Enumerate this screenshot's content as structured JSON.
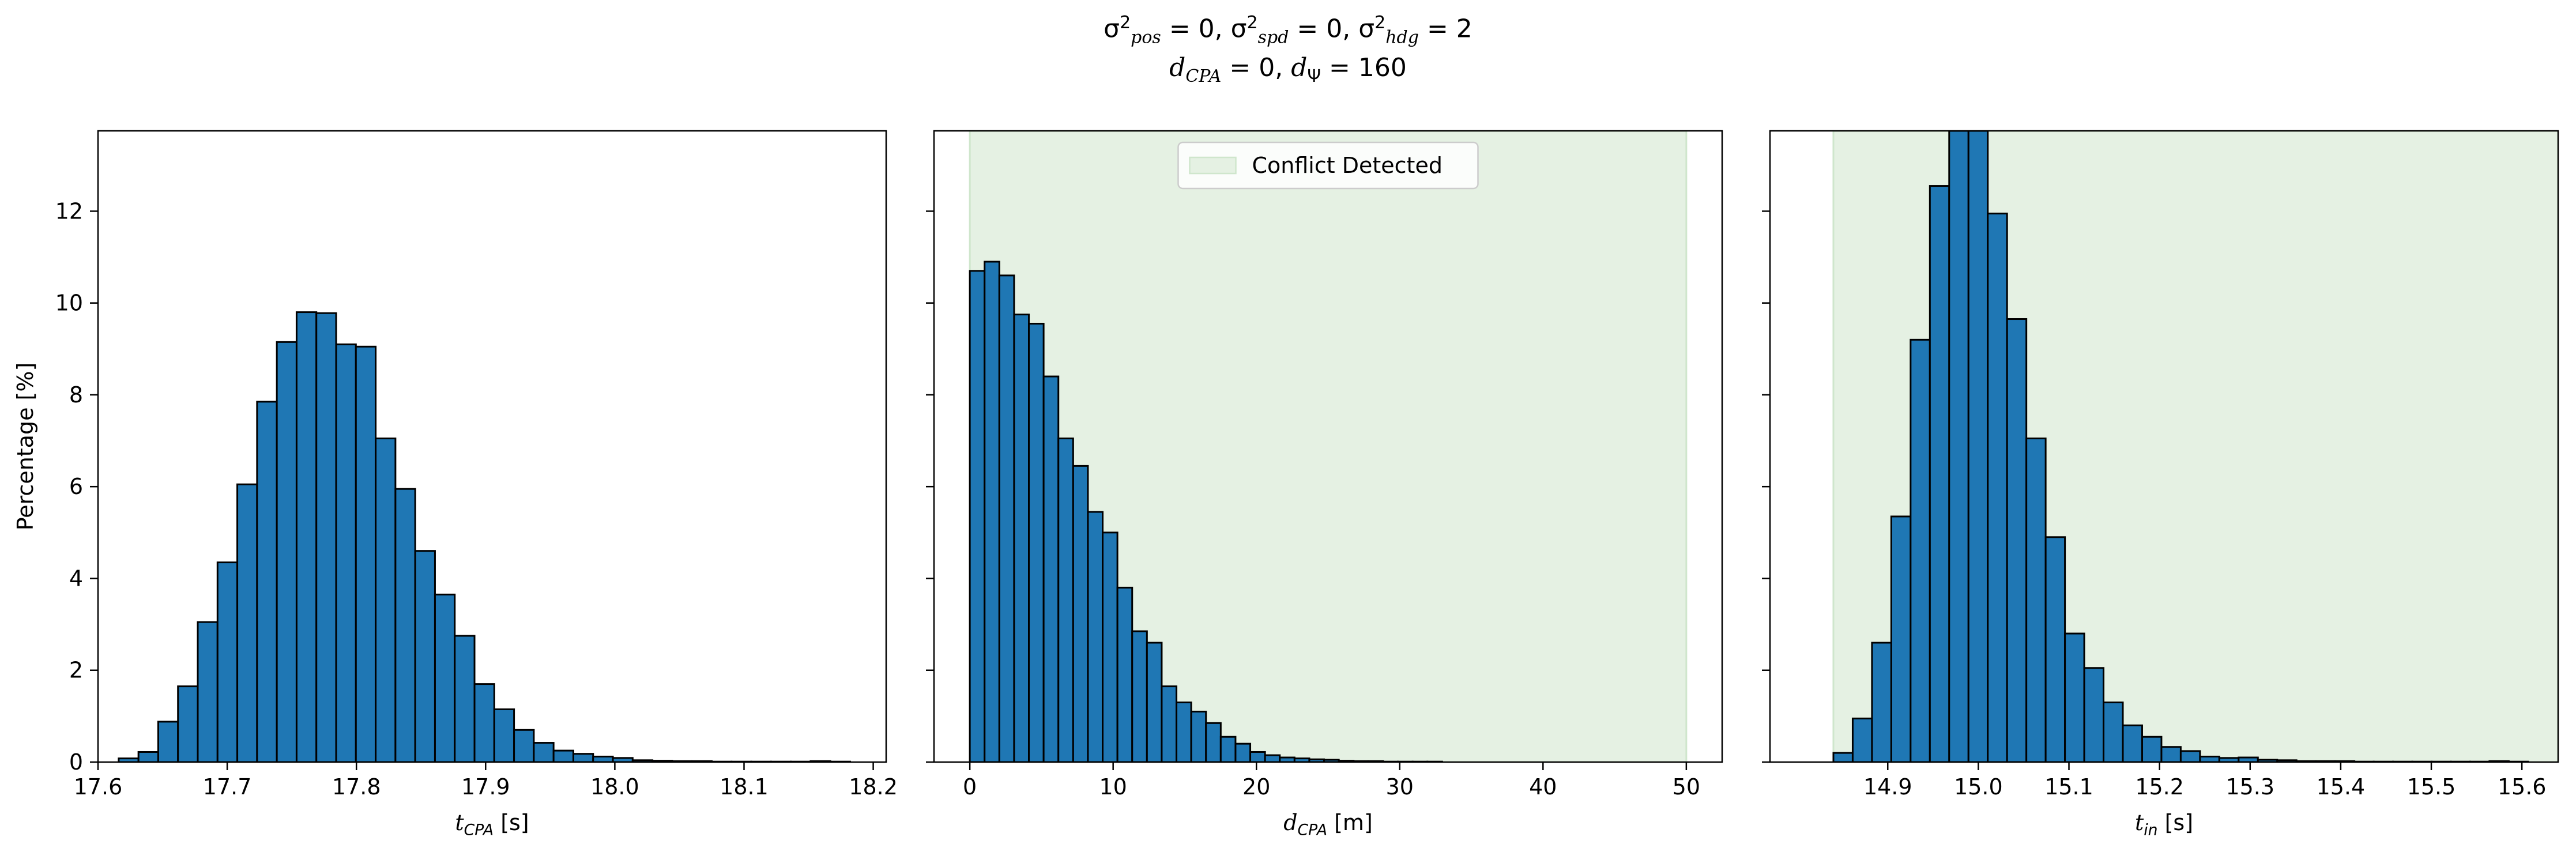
{
  "title": {
    "line1": "σ²pos = 0, σ²spd = 0, σ²hdg = 2",
    "line2": "dCPA = 0, dΨ = 160"
  },
  "colors": {
    "bar_fill": "#1f77b4",
    "bar_edge": "#000000",
    "shade_fill": "#e5f1e3",
    "shade_edge": "#cfe6cc"
  },
  "chart_data": [
    {
      "type": "bar",
      "xlabel": "t_CPA [s]",
      "ylabel": "Percentage [%]",
      "xlim": [
        17.6,
        18.21
      ],
      "ylim": [
        0,
        13.75
      ],
      "xticks": [
        17.6,
        17.7,
        17.8,
        17.9,
        18.0,
        18.1,
        18.2
      ],
      "xtick_labels": [
        "17.6",
        "17.7",
        "17.8",
        "17.9",
        "18.0",
        "18.1",
        "18.2"
      ],
      "yticks": [
        0,
        2,
        4,
        6,
        8,
        10,
        12
      ],
      "ytick_labels": [
        "0",
        "2",
        "4",
        "6",
        "8",
        "10",
        "12"
      ],
      "bin_edges": [
        17.616,
        17.6313,
        17.6466,
        17.6619,
        17.6772,
        17.6925,
        17.7078,
        17.7231,
        17.7384,
        17.7537,
        17.769,
        17.7843,
        17.7996,
        17.8149,
        17.8302,
        17.8455,
        17.8608,
        17.8761,
        17.8914,
        17.9067,
        17.922,
        17.9373,
        17.9526,
        17.9679,
        17.9832,
        17.9985,
        18.0138,
        18.0291,
        18.0444,
        18.0597,
        18.075,
        18.0903,
        18.1056,
        18.1209,
        18.1362,
        18.1515,
        18.1668,
        18.1821
      ],
      "values": [
        0.08,
        0.22,
        0.88,
        1.65,
        3.05,
        4.35,
        6.05,
        7.85,
        9.15,
        9.8,
        9.78,
        9.1,
        9.05,
        7.05,
        5.95,
        4.6,
        3.65,
        2.75,
        1.7,
        1.15,
        0.7,
        0.42,
        0.25,
        0.18,
        0.12,
        0.09,
        0.04,
        0.03,
        0.02,
        0.02,
        0.01,
        0.01,
        0.01,
        0.01,
        0.01,
        0.02,
        0.01
      ],
      "shade": null,
      "legend": null
    },
    {
      "type": "bar",
      "xlabel": "d_CPA [m]",
      "ylabel": "",
      "xlim": [
        -2.5,
        52.5
      ],
      "ylim": [
        0,
        13.75
      ],
      "xticks": [
        0,
        10,
        20,
        30,
        40,
        50
      ],
      "xtick_labels": [
        "0",
        "10",
        "20",
        "30",
        "40",
        "50"
      ],
      "yticks": [
        0,
        2,
        4,
        6,
        8,
        10,
        12
      ],
      "ytick_labels": [],
      "bin_edges": [
        0,
        1.03,
        2.06,
        3.09,
        4.12,
        5.15,
        6.18,
        7.21,
        8.24,
        9.27,
        10.3,
        11.33,
        12.36,
        13.39,
        14.42,
        15.45,
        16.48,
        17.51,
        18.54,
        19.57,
        20.6,
        21.63,
        22.66,
        23.69,
        24.72,
        25.75,
        26.78,
        27.81,
        28.84,
        29.87,
        30.9,
        31.93,
        32.96
      ],
      "values": [
        10.7,
        10.9,
        10.6,
        9.75,
        9.55,
        8.4,
        7.05,
        6.45,
        5.45,
        5.0,
        3.8,
        2.85,
        2.6,
        1.65,
        1.3,
        1.1,
        0.85,
        0.55,
        0.4,
        0.22,
        0.15,
        0.1,
        0.08,
        0.06,
        0.05,
        0.03,
        0.02,
        0.02,
        0.01,
        0.01,
        0.01,
        0.01
      ],
      "shade": {
        "x0": 0,
        "x1": 50
      },
      "legend": {
        "label": "Conflict Detected",
        "position": "upper center"
      }
    },
    {
      "type": "bar",
      "xlabel": "t_in [s]",
      "ylabel": "",
      "xlim": [
        14.77,
        15.64
      ],
      "ylim": [
        0,
        13.75
      ],
      "xticks": [
        14.9,
        15.0,
        15.1,
        15.2,
        15.3,
        15.4,
        15.5,
        15.6
      ],
      "xtick_labels": [
        "14.9",
        "15.0",
        "15.1",
        "15.2",
        "15.3",
        "15.4",
        "15.5",
        "15.6"
      ],
      "yticks": [
        0,
        2,
        4,
        6,
        8,
        10,
        12
      ],
      "ytick_labels": [],
      "bin_edges": [
        14.84,
        14.8613,
        14.8826,
        14.9039,
        14.9252,
        14.9465,
        14.9678,
        14.9891,
        15.0104,
        15.0317,
        15.053,
        15.0743,
        15.0956,
        15.1169,
        15.1382,
        15.1595,
        15.1808,
        15.2021,
        15.2234,
        15.2447,
        15.266,
        15.2873,
        15.3086,
        15.3299,
        15.3512,
        15.3725,
        15.3938,
        15.4151,
        15.4364,
        15.4577,
        15.479,
        15.5003,
        15.5216,
        15.5429,
        15.5642,
        15.5855,
        15.6068
      ],
      "values": [
        0.2,
        0.95,
        2.6,
        5.35,
        9.2,
        12.55,
        13.75,
        13.75,
        11.95,
        9.65,
        7.05,
        4.9,
        2.8,
        2.05,
        1.3,
        0.8,
        0.55,
        0.33,
        0.24,
        0.12,
        0.09,
        0.1,
        0.05,
        0.04,
        0.02,
        0.02,
        0.02,
        0.01,
        0.01,
        0.01,
        0.01,
        0.01,
        0.01,
        0.01,
        0.02,
        0.01
      ],
      "shade": {
        "x0": 14.84,
        "x1": 15.64
      },
      "legend": null
    }
  ]
}
